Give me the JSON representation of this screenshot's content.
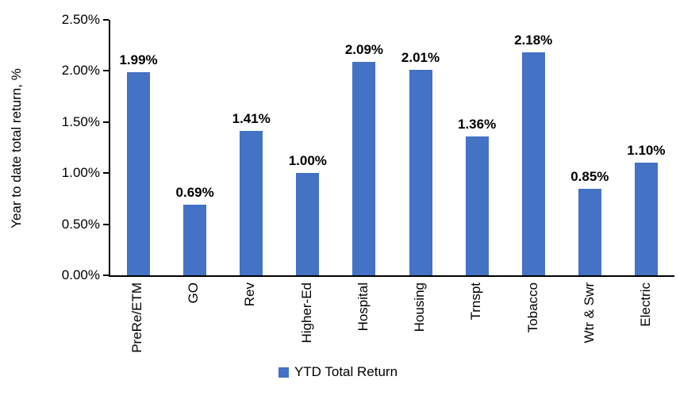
{
  "chart_data": {
    "type": "bar",
    "title": "",
    "xlabel": "",
    "ylabel": "Year to date total return, %",
    "categories": [
      "PreRe/ETM",
      "GO",
      "Rev",
      "Higher-Ed",
      "Hospital",
      "Housing",
      "Trnspt",
      "Tobacco",
      "Wtr & Swr",
      "Electric"
    ],
    "values": [
      1.99,
      0.69,
      1.41,
      1.0,
      2.09,
      2.01,
      1.36,
      2.18,
      0.85,
      1.1
    ],
    "value_labels": [
      "1.99%",
      "0.69%",
      "1.41%",
      "1.00%",
      "2.09%",
      "2.01%",
      "1.36%",
      "2.18%",
      "0.85%",
      "1.10%"
    ],
    "y_ticks": [
      "2.50%",
      "2.00%",
      "1.50%",
      "1.00%",
      "0.50%",
      "0.00%"
    ],
    "ylim": [
      0,
      2.5
    ],
    "grid": false,
    "legend": {
      "position": "bottom",
      "label": "YTD Total Return"
    },
    "bar_color": "#4472C4",
    "axis_color": "#000000"
  }
}
